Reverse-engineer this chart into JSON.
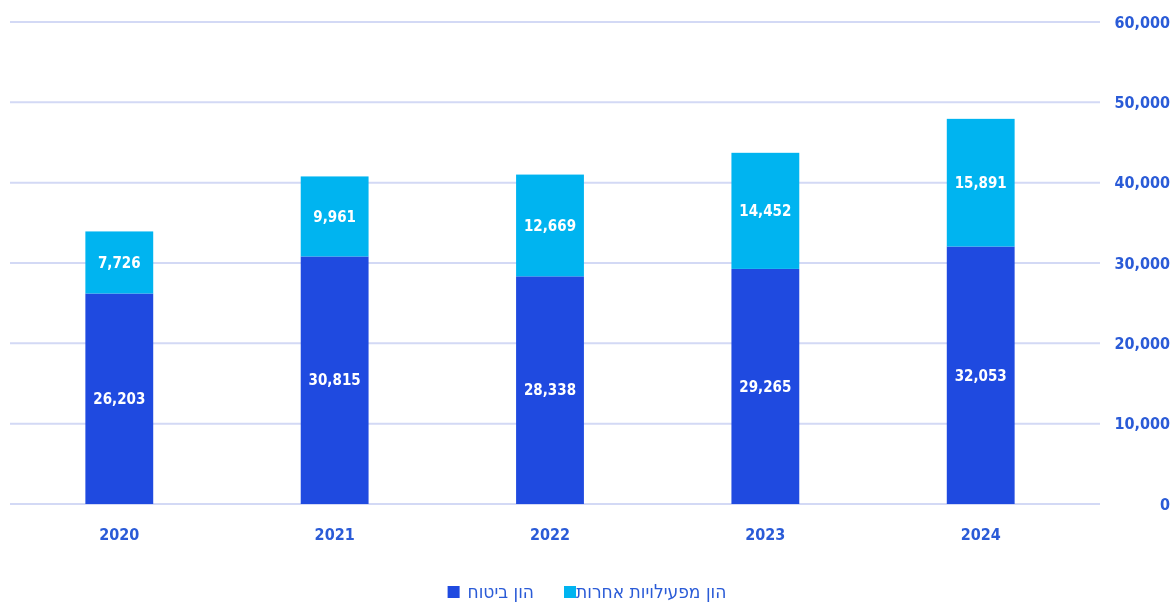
{
  "chart_data": {
    "type": "bar",
    "stacked": true,
    "categories": [
      "2020",
      "2021",
      "2022",
      "2023",
      "2024"
    ],
    "series": [
      {
        "name": "הון ביטוח",
        "color": "#1f4ae0",
        "values": [
          26203,
          30815,
          28338,
          29265,
          32053
        ],
        "value_labels": [
          "26,203",
          "30,815",
          "28,338",
          "29,265",
          "32,053"
        ]
      },
      {
        "name": "הון מפעילויות אחרות",
        "color": "#00b4f0",
        "values": [
          7726,
          9961,
          12669,
          14452,
          15891
        ],
        "value_labels": [
          "7,726",
          "9,961",
          "12,669",
          "14,452",
          "15,891"
        ]
      }
    ],
    "ylim": [
      0,
      60000
    ],
    "yticks": [
      {
        "value": 0,
        "label": "0"
      },
      {
        "value": 10000,
        "label": "10,000"
      },
      {
        "value": 20000,
        "label": "20,000"
      },
      {
        "value": 30000,
        "label": "30,000"
      },
      {
        "value": 40000,
        "label": "40,000"
      },
      {
        "value": 50000,
        "label": "50,000"
      },
      {
        "value": 60000,
        "label": "60,000"
      }
    ],
    "grid": "y",
    "legend": "bottom"
  }
}
